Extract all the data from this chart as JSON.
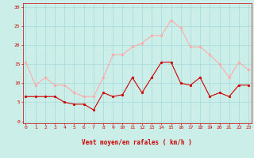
{
  "x": [
    0,
    1,
    2,
    3,
    4,
    5,
    6,
    7,
    8,
    9,
    10,
    11,
    12,
    13,
    14,
    15,
    16,
    17,
    18,
    19,
    20,
    21,
    22,
    23
  ],
  "mean_wind": [
    6.5,
    6.5,
    6.5,
    6.5,
    5.0,
    4.5,
    4.5,
    3.0,
    7.5,
    6.5,
    7.0,
    11.5,
    7.5,
    11.5,
    15.5,
    15.5,
    10.0,
    9.5,
    11.5,
    6.5,
    7.5,
    6.5,
    9.5,
    9.5
  ],
  "gust_wind": [
    15.5,
    9.5,
    11.5,
    9.5,
    9.5,
    7.5,
    6.5,
    6.5,
    11.5,
    17.5,
    17.5,
    19.5,
    20.5,
    22.5,
    22.5,
    26.5,
    24.5,
    19.5,
    19.5,
    17.5,
    15.0,
    11.5,
    15.5,
    13.5
  ],
  "mean_color": "#cc0000",
  "gust_color": "#ffaaaa",
  "bg_color": "#cceee8",
  "grid_color": "#aadddd",
  "xlabel": "Vent moyen/en rafales ( km/h )",
  "yticks": [
    0,
    5,
    10,
    15,
    20,
    25,
    30
  ],
  "xticks": [
    0,
    1,
    2,
    3,
    4,
    5,
    6,
    7,
    8,
    9,
    10,
    11,
    12,
    13,
    14,
    15,
    16,
    17,
    18,
    19,
    20,
    21,
    22,
    23
  ],
  "ylim": [
    -0.5,
    31
  ],
  "xlim": [
    -0.3,
    23.3
  ]
}
